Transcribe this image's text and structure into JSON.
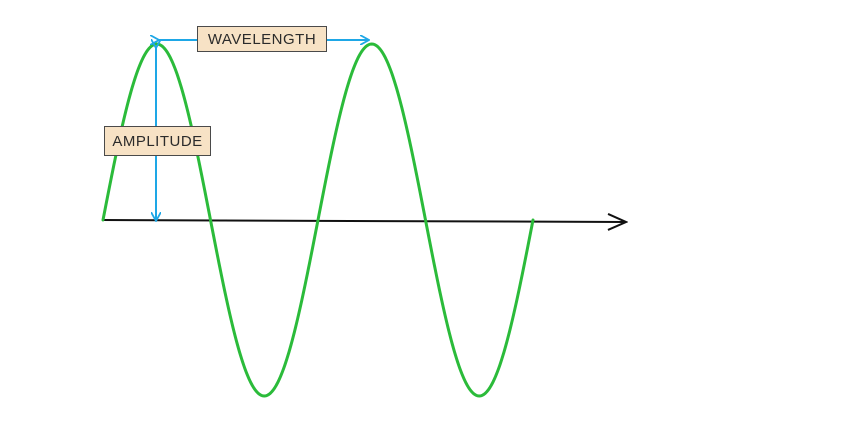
{
  "diagram": {
    "labels": {
      "wavelength": "WAVELENGTH",
      "amplitude": "AMPLITUDE"
    },
    "colors": {
      "wave": "#2bbb3a",
      "arrow": "#1ea7e6",
      "axis": "#111111",
      "label_fill": "#f7e2c5",
      "label_border": "#4a4a4a"
    },
    "wave": {
      "cycles": 2,
      "starts_at": "equilibrium",
      "ends_at": "equilibrium"
    }
  }
}
